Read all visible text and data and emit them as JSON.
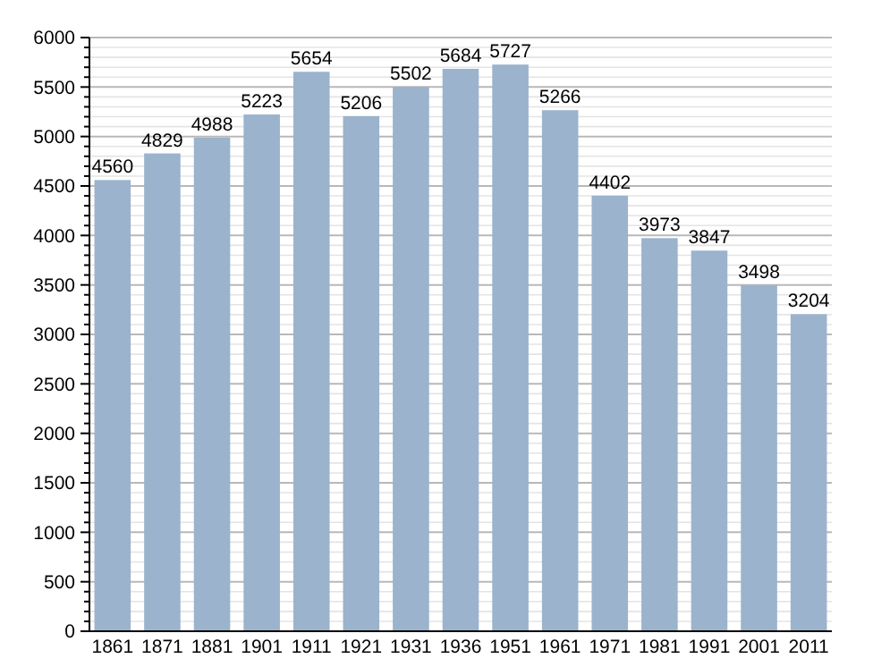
{
  "chart_data": {
    "type": "bar",
    "categories": [
      "1861",
      "1871",
      "1881",
      "1901",
      "1911",
      "1921",
      "1931",
      "1936",
      "1951",
      "1961",
      "1971",
      "1981",
      "1991",
      "2001",
      "2011"
    ],
    "values": [
      4560,
      4829,
      4988,
      5223,
      5654,
      5206,
      5502,
      5684,
      5727,
      5266,
      4402,
      3973,
      3847,
      3498,
      3204
    ],
    "color": "#9bb3cd",
    "data_labels": true,
    "grid": "y",
    "ylim": [
      0,
      6000
    ],
    "yticks": [
      0,
      {
        "value": 100,
        "label": null
      },
      {
        "value": 200,
        "label": null
      },
      {
        "value": 300,
        "label": null
      },
      {
        "value": 400,
        "label": null
      },
      500,
      {
        "value": 600,
        "label": null
      },
      {
        "value": 700,
        "label": null
      },
      {
        "value": 800,
        "label": null
      },
      {
        "value": 900,
        "label": null
      },
      1000,
      {
        "value": 1100,
        "label": null
      },
      {
        "value": 1200,
        "label": null
      },
      {
        "value": 1300,
        "label": null
      },
      {
        "value": 1400,
        "label": null
      },
      1500,
      {
        "value": 1600,
        "label": null
      },
      {
        "value": 1700,
        "label": null
      },
      {
        "value": 1800,
        "label": null
      },
      {
        "value": 1900,
        "label": null
      },
      2000,
      {
        "value": 2100,
        "label": null
      },
      {
        "value": 2200,
        "label": null
      },
      {
        "value": 2300,
        "label": null
      },
      {
        "value": 2400,
        "label": null
      },
      2500,
      {
        "value": 2600,
        "label": null
      },
      {
        "value": 2700,
        "label": null
      },
      {
        "value": 2800,
        "label": null
      },
      {
        "value": 2900,
        "label": null
      },
      3000,
      {
        "value": 3100,
        "label": null
      },
      {
        "value": 3200,
        "label": null
      },
      {
        "value": 3300,
        "label": null
      },
      {
        "value": 3400,
        "label": null
      },
      3500,
      {
        "value": 3600,
        "label": null
      },
      {
        "value": 3700,
        "label": null
      },
      {
        "value": 3800,
        "label": null
      },
      {
        "value": 3900,
        "label": null
      },
      4000,
      {
        "value": 4100,
        "label": null
      },
      {
        "value": 4200,
        "label": null
      },
      {
        "value": 4300,
        "label": null
      },
      {
        "value": 4400,
        "label": null
      },
      4500,
      {
        "value": 4600,
        "label": null
      },
      {
        "value": 4700,
        "label": null
      },
      {
        "value": 4800,
        "label": null
      },
      {
        "value": 4900,
        "label": null
      },
      5000,
      {
        "value": 5100,
        "label": null
      },
      {
        "value": 5200,
        "label": null
      },
      {
        "value": 5300,
        "label": null
      },
      {
        "value": 5400,
        "label": null
      },
      5500,
      {
        "value": 5600,
        "label": null
      },
      {
        "value": 5700,
        "label": null
      },
      {
        "value": 5800,
        "label": null
      },
      {
        "value": 5900,
        "label": null
      },
      6000
    ]
  }
}
